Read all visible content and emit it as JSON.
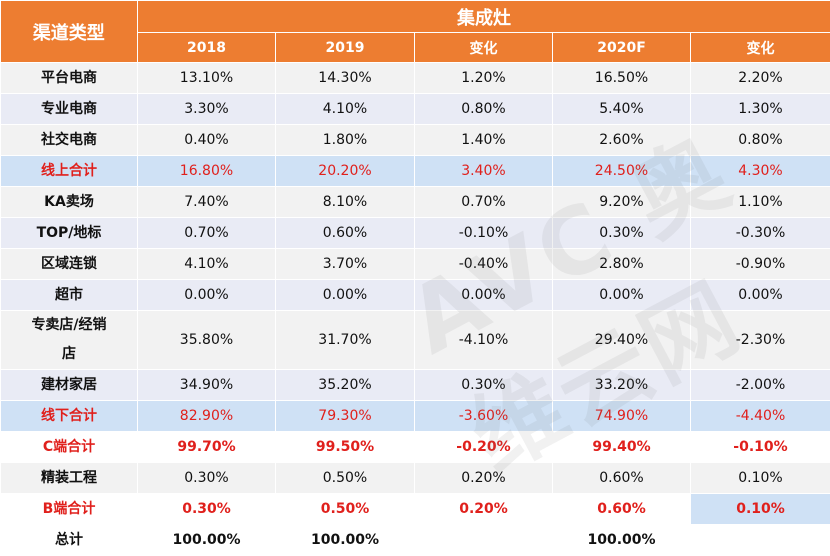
{
  "header": {
    "channel_label": "渠道类型",
    "group_label": "集成灶",
    "columns": [
      "2018",
      "2019",
      "变化",
      "2020F",
      "变化"
    ]
  },
  "rows": [
    {
      "label": "平台电商",
      "values": [
        "13.10%",
        "14.30%",
        "1.20%",
        "16.50%",
        "2.20%"
      ]
    },
    {
      "label": "专业电商",
      "values": [
        "3.30%",
        "4.10%",
        "0.80%",
        "5.40%",
        "1.30%"
      ]
    },
    {
      "label": "社交电商",
      "values": [
        "0.40%",
        "1.80%",
        "1.40%",
        "2.60%",
        "0.80%"
      ]
    },
    {
      "label": "线上合计",
      "values": [
        "16.80%",
        "20.20%",
        "3.40%",
        "24.50%",
        "4.30%"
      ]
    },
    {
      "label": "KA卖场",
      "values": [
        "7.40%",
        "8.10%",
        "0.70%",
        "9.20%",
        "1.10%"
      ]
    },
    {
      "label": "TOP/地标",
      "values": [
        "0.70%",
        "0.60%",
        "-0.10%",
        "0.30%",
        "-0.30%"
      ]
    },
    {
      "label": "区域连锁",
      "values": [
        "4.10%",
        "3.70%",
        "-0.40%",
        "2.80%",
        "-0.90%"
      ]
    },
    {
      "label": "超市",
      "values": [
        "0.00%",
        "0.00%",
        "0.00%",
        "0.00%",
        "0.00%"
      ]
    },
    {
      "label": "专卖店/经销店",
      "values": [
        "35.80%",
        "31.70%",
        "-4.10%",
        "29.40%",
        "-2.30%"
      ]
    },
    {
      "label": "建材家居",
      "values": [
        "34.90%",
        "35.20%",
        "0.30%",
        "33.20%",
        "-2.00%"
      ]
    },
    {
      "label": "线下合计",
      "values": [
        "82.90%",
        "79.30%",
        "-3.60%",
        "74.90%",
        "-4.40%"
      ]
    },
    {
      "label": "C端合计",
      "values": [
        "99.70%",
        "99.50%",
        "-0.20%",
        "99.40%",
        "-0.10%"
      ]
    },
    {
      "label": "精装工程",
      "values": [
        "0.30%",
        "0.50%",
        "0.20%",
        "0.60%",
        "0.10%"
      ]
    },
    {
      "label": "B端合计",
      "values": [
        "0.30%",
        "0.50%",
        "0.20%",
        "0.60%",
        "0.10%"
      ]
    },
    {
      "label": "总计",
      "values": [
        "100.00%",
        "100.00%",
        "",
        "100.00%",
        ""
      ]
    }
  ],
  "watermark": "AVC 奥维云网"
}
